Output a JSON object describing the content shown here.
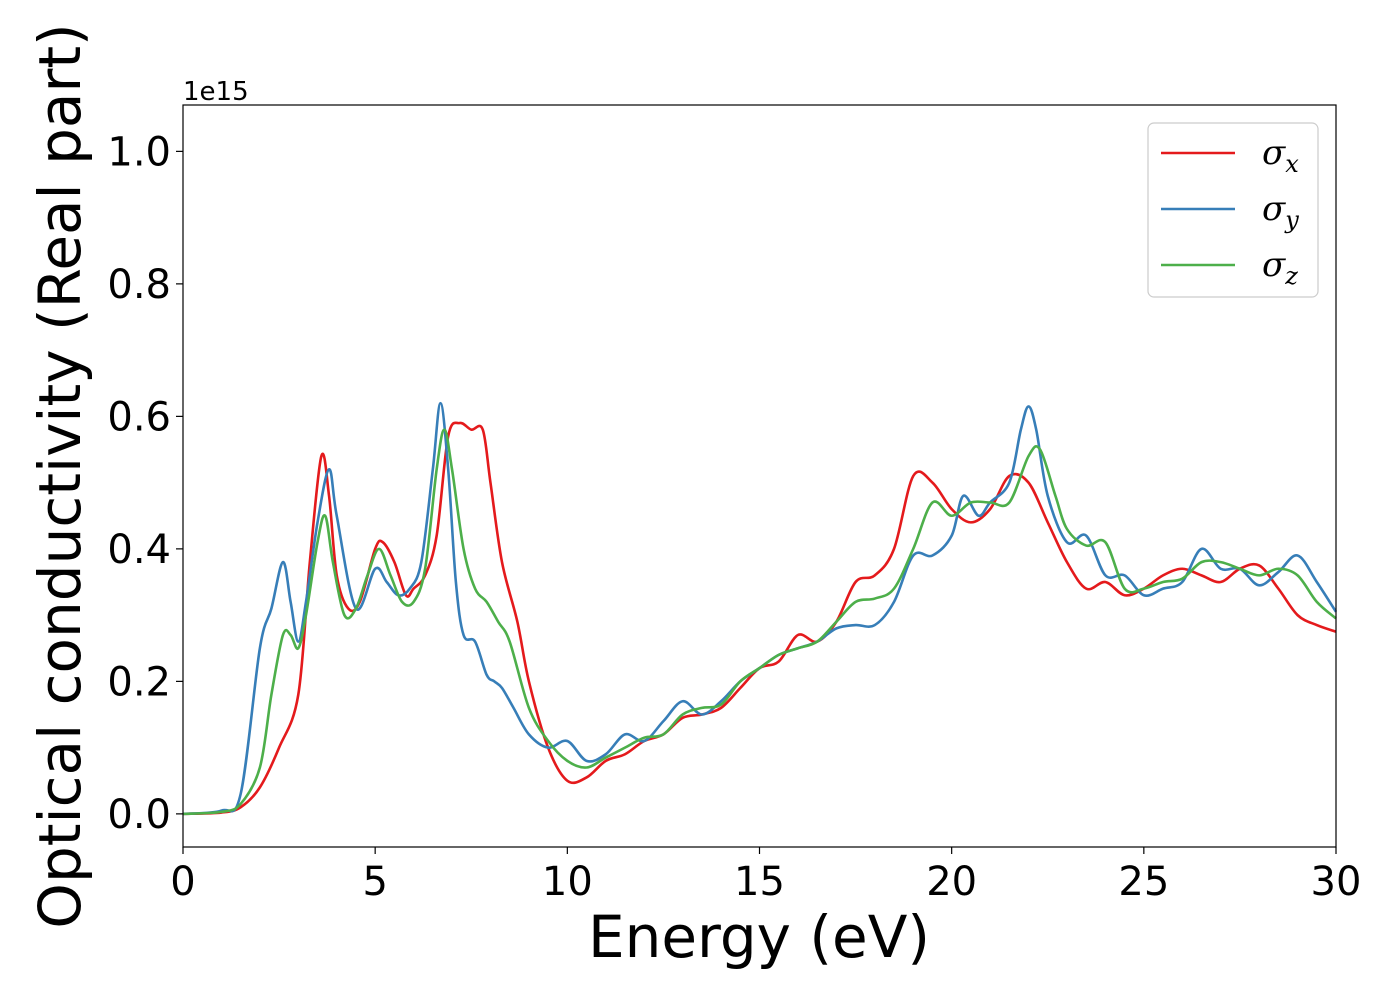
{
  "chart_data": {
    "type": "line",
    "title": "",
    "xlabel": "Energy (eV)",
    "ylabel": "Optical conductivity (Real part)",
    "y_offset_label": "1e15",
    "xlim": [
      0,
      30
    ],
    "ylim": [
      -0.05,
      1.07
    ],
    "xticks": [
      0,
      5,
      10,
      15,
      20,
      25,
      30
    ],
    "xtick_labels": [
      "0",
      "5",
      "10",
      "15",
      "20",
      "25",
      "30"
    ],
    "yticks": [
      0.0,
      0.2,
      0.4,
      0.6,
      0.8,
      1.0
    ],
    "ytick_labels": [
      "0.0",
      "0.2",
      "0.4",
      "0.6",
      "0.8",
      "1.0"
    ],
    "grid": false,
    "legend_position": "top-right",
    "series": [
      {
        "name": "σ",
        "subscript": "x",
        "color": "#e41a1c",
        "x": [
          0,
          1,
          1.5,
          2,
          2.5,
          3,
          3.3,
          3.6,
          3.8,
          4.0,
          4.3,
          4.6,
          5.0,
          5.2,
          5.5,
          5.8,
          6.0,
          6.3,
          6.6,
          6.9,
          7.2,
          7.5,
          7.8,
          8.0,
          8.3,
          8.7,
          9.0,
          9.5,
          10.0,
          10.5,
          11.0,
          11.5,
          12.0,
          12.5,
          13.0,
          13.5,
          14.0,
          14.5,
          15.0,
          15.5,
          16.0,
          16.5,
          17.0,
          17.5,
          18.0,
          18.5,
          19.0,
          19.5,
          20.0,
          20.5,
          21.0,
          21.5,
          22.0,
          22.5,
          23.0,
          23.5,
          24.0,
          24.5,
          25.0,
          25.5,
          26.0,
          26.5,
          27.0,
          27.5,
          28.0,
          28.5,
          29.0,
          29.5,
          30.0
        ],
        "y": [
          0,
          0.002,
          0.01,
          0.04,
          0.1,
          0.18,
          0.38,
          0.54,
          0.48,
          0.36,
          0.31,
          0.32,
          0.4,
          0.41,
          0.38,
          0.33,
          0.34,
          0.36,
          0.42,
          0.57,
          0.59,
          0.58,
          0.58,
          0.5,
          0.38,
          0.29,
          0.2,
          0.1,
          0.05,
          0.055,
          0.08,
          0.09,
          0.11,
          0.12,
          0.145,
          0.15,
          0.16,
          0.19,
          0.22,
          0.23,
          0.27,
          0.26,
          0.29,
          0.35,
          0.36,
          0.4,
          0.51,
          0.5,
          0.46,
          0.44,
          0.46,
          0.51,
          0.5,
          0.44,
          0.38,
          0.34,
          0.35,
          0.33,
          0.34,
          0.36,
          0.37,
          0.36,
          0.35,
          0.37,
          0.375,
          0.34,
          0.3,
          0.285,
          0.275
        ]
      },
      {
        "name": "σ",
        "subscript": "y",
        "color": "#377eb8",
        "x": [
          0,
          1,
          1.5,
          2,
          2.3,
          2.6,
          2.8,
          3.0,
          3.2,
          3.5,
          3.8,
          4.0,
          4.5,
          5.0,
          5.3,
          5.6,
          5.9,
          6.2,
          6.5,
          6.7,
          6.9,
          7.1,
          7.3,
          7.6,
          7.9,
          8.1,
          8.3,
          8.6,
          9.0,
          9.5,
          10.0,
          10.5,
          11.0,
          11.5,
          12.0,
          12.5,
          13.0,
          13.5,
          14.0,
          14.5,
          15.0,
          15.5,
          16.0,
          16.5,
          17.0,
          17.5,
          18.0,
          18.5,
          19.0,
          19.5,
          20.0,
          20.3,
          20.7,
          21.0,
          21.5,
          21.8,
          22.0,
          22.2,
          22.5,
          23.0,
          23.5,
          24.0,
          24.5,
          25.0,
          25.5,
          26.0,
          26.5,
          27.0,
          27.5,
          28.0,
          28.5,
          29.0,
          29.5,
          30.0
        ],
        "y": [
          0,
          0.005,
          0.03,
          0.25,
          0.31,
          0.38,
          0.32,
          0.26,
          0.32,
          0.44,
          0.52,
          0.45,
          0.31,
          0.37,
          0.35,
          0.33,
          0.34,
          0.38,
          0.52,
          0.62,
          0.52,
          0.35,
          0.27,
          0.26,
          0.21,
          0.2,
          0.19,
          0.16,
          0.12,
          0.1,
          0.11,
          0.08,
          0.09,
          0.12,
          0.11,
          0.14,
          0.17,
          0.15,
          0.17,
          0.2,
          0.22,
          0.24,
          0.25,
          0.26,
          0.28,
          0.285,
          0.285,
          0.32,
          0.39,
          0.39,
          0.42,
          0.48,
          0.45,
          0.47,
          0.5,
          0.58,
          0.615,
          0.58,
          0.48,
          0.41,
          0.42,
          0.36,
          0.36,
          0.33,
          0.34,
          0.35,
          0.4,
          0.37,
          0.37,
          0.345,
          0.365,
          0.39,
          0.35,
          0.305
        ]
      },
      {
        "name": "σ",
        "subscript": "z",
        "color": "#4daf4a",
        "x": [
          0,
          1,
          1.5,
          2,
          2.3,
          2.6,
          2.8,
          3.0,
          3.2,
          3.5,
          3.7,
          3.9,
          4.2,
          4.5,
          4.8,
          5.1,
          5.4,
          5.7,
          6.0,
          6.3,
          6.6,
          6.8,
          7.0,
          7.3,
          7.6,
          7.9,
          8.2,
          8.5,
          9.0,
          9.5,
          10.0,
          10.5,
          11.0,
          11.5,
          12.0,
          12.5,
          13.0,
          13.5,
          14.0,
          14.5,
          15.0,
          15.5,
          16.0,
          16.5,
          17.0,
          17.5,
          18.0,
          18.5,
          19.0,
          19.5,
          20.0,
          20.5,
          21.0,
          21.5,
          22.0,
          22.3,
          22.7,
          23.0,
          23.5,
          24.0,
          24.5,
          25.0,
          25.5,
          26.0,
          26.5,
          27.0,
          27.5,
          28.0,
          28.5,
          29.0,
          29.5,
          30.0
        ],
        "y": [
          0,
          0.003,
          0.015,
          0.07,
          0.18,
          0.27,
          0.27,
          0.25,
          0.3,
          0.41,
          0.45,
          0.38,
          0.3,
          0.31,
          0.36,
          0.4,
          0.36,
          0.32,
          0.32,
          0.37,
          0.52,
          0.58,
          0.52,
          0.4,
          0.34,
          0.32,
          0.29,
          0.26,
          0.16,
          0.11,
          0.08,
          0.07,
          0.085,
          0.1,
          0.115,
          0.12,
          0.15,
          0.16,
          0.165,
          0.2,
          0.22,
          0.24,
          0.25,
          0.26,
          0.29,
          0.32,
          0.325,
          0.34,
          0.4,
          0.47,
          0.45,
          0.47,
          0.47,
          0.47,
          0.54,
          0.55,
          0.48,
          0.43,
          0.405,
          0.41,
          0.34,
          0.34,
          0.35,
          0.355,
          0.38,
          0.38,
          0.37,
          0.36,
          0.37,
          0.36,
          0.32,
          0.295
        ]
      }
    ]
  }
}
